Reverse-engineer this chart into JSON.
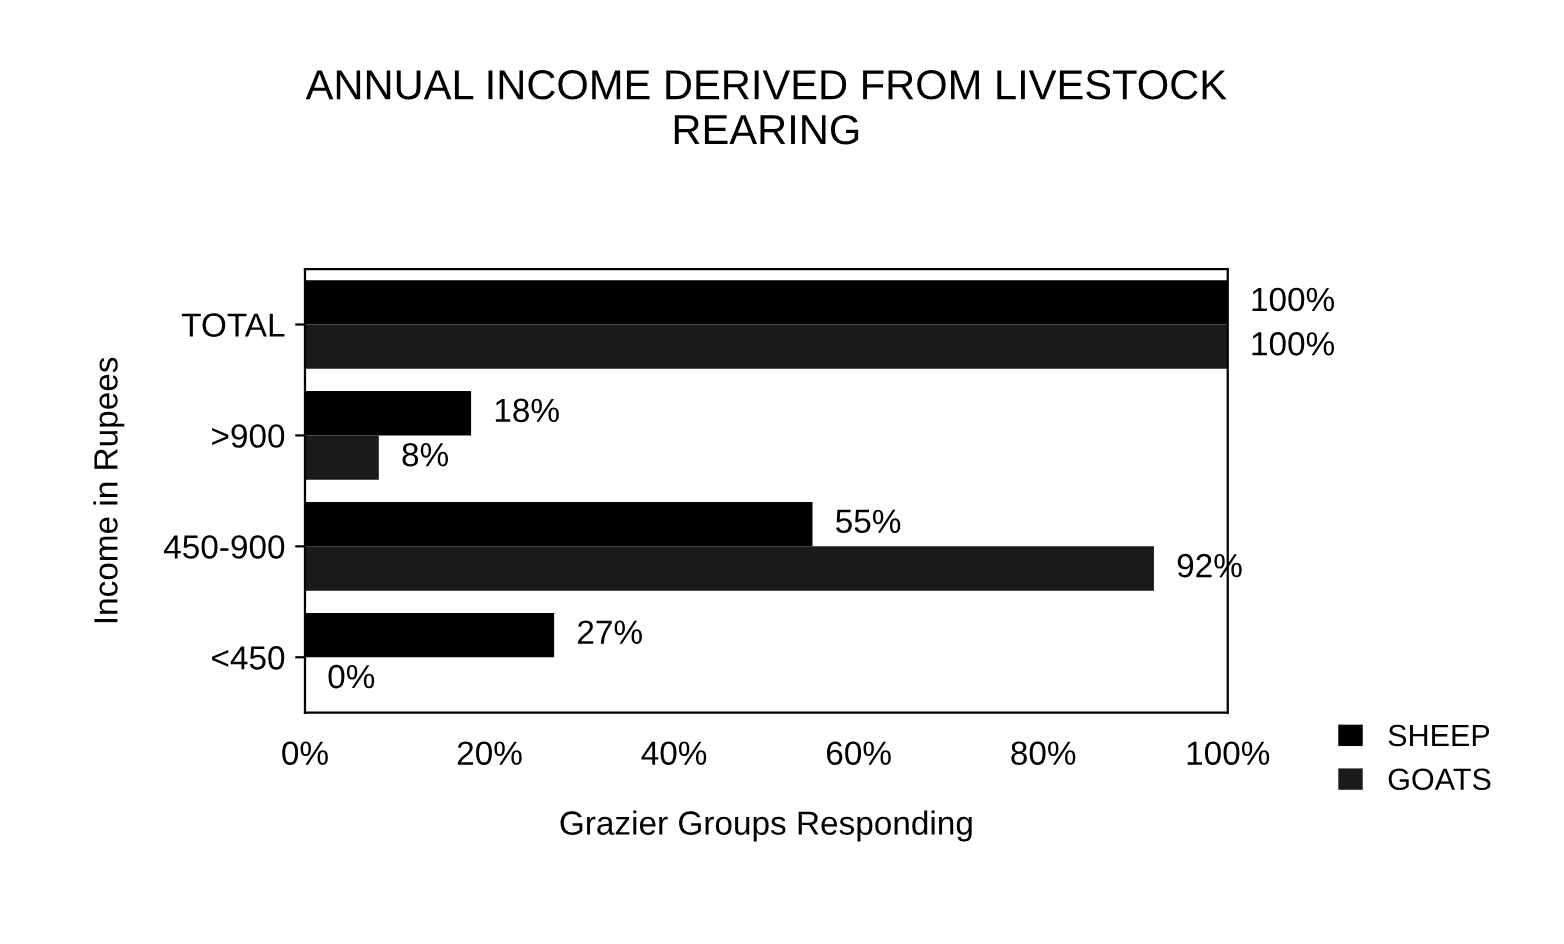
{
  "chart_data": {
    "type": "bar",
    "orientation": "horizontal",
    "title": "ANNUAL INCOME DERIVED FROM LIVESTOCK\nREARING",
    "xlabel": "Grazier Groups Responding",
    "ylabel": "Income in Rupees",
    "categories": [
      "TOTAL",
      ">900",
      "450-900",
      "<450"
    ],
    "series": [
      {
        "name": "SHEEP",
        "color": "#000000",
        "values": [
          100,
          18,
          55,
          27
        ],
        "value_labels": [
          "100%",
          "18%",
          "55%",
          "27%"
        ]
      },
      {
        "name": "GOATS",
        "color": "#1a1a1a",
        "values": [
          100,
          8,
          92,
          0
        ],
        "value_labels": [
          "100%",
          "8%",
          "92%",
          "0%"
        ]
      }
    ],
    "xlim": [
      0,
      100
    ],
    "xticks": [
      {
        "value": 0,
        "label": "0%"
      },
      {
        "value": 20,
        "label": "20%"
      },
      {
        "value": 40,
        "label": "40%"
      },
      {
        "value": 60,
        "label": "60%"
      },
      {
        "value": 80,
        "label": "80%"
      },
      {
        "value": 100,
        "label": "100%"
      }
    ],
    "grid": false,
    "legend": "bottom right"
  }
}
